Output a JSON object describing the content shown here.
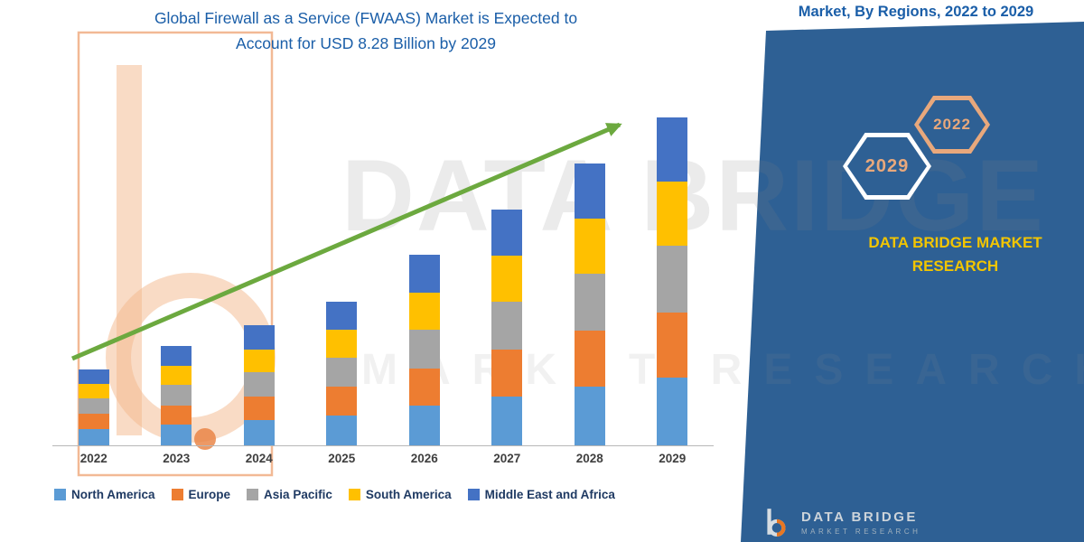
{
  "page": {
    "title_line1": "Global Firewall as a Service (FWAAS) Market is Expected to",
    "title_line2": "Account for USD 8.28 Billion by 2029"
  },
  "side_panel": {
    "heading": "Market, By Regions, 2022 to 2029",
    "hex_2022": "2022",
    "hex_2029": "2029",
    "brand_text": "DATA BRIDGE MARKET RESEARCH",
    "panel_color": "#2e6094",
    "accent_peach": "#e8a87c",
    "brand_yellow": "#f2c500",
    "arrow_green": "#6ca93f"
  },
  "watermarks": {
    "big_text": "DATA BRIDGE",
    "sub_text": "MARKET RESEARCH"
  },
  "footer_logo": {
    "name": "DATA BRIDGE",
    "tagline": "MARKET RESEARCH"
  },
  "chart_data": {
    "type": "bar",
    "stacked": true,
    "title": "Global Firewall as a Service (FWAAS) Market is Expected to Account for USD 8.28 Billion by 2029",
    "subtitle": "Market, By Regions, 2022 to 2029",
    "unit": "USD Billion",
    "categories": [
      "2022",
      "2023",
      "2024",
      "2025",
      "2026",
      "2027",
      "2028",
      "2029"
    ],
    "series": [
      {
        "name": "North America",
        "color": "#5b9bd5",
        "values": [
          0.42,
          0.52,
          0.63,
          0.76,
          1.0,
          1.24,
          1.48,
          1.72
        ]
      },
      {
        "name": "Europe",
        "color": "#ed7d31",
        "values": [
          0.38,
          0.49,
          0.6,
          0.72,
          0.95,
          1.18,
          1.41,
          1.64
        ]
      },
      {
        "name": "Asia Pacific",
        "color": "#a5a5a5",
        "values": [
          0.39,
          0.51,
          0.62,
          0.74,
          0.98,
          1.21,
          1.45,
          1.69
        ]
      },
      {
        "name": "South America",
        "color": "#ffc000",
        "values": [
          0.37,
          0.48,
          0.58,
          0.7,
          0.93,
          1.15,
          1.38,
          1.61
        ]
      },
      {
        "name": "Middle East and Africa",
        "color": "#4472c4",
        "values": [
          0.36,
          0.5,
          0.6,
          0.71,
          0.95,
          1.18,
          1.4,
          1.62
        ]
      }
    ],
    "totals": [
      1.92,
      2.5,
      3.03,
      3.63,
      4.81,
      5.96,
      7.12,
      8.28
    ],
    "ylim": [
      0,
      8.5
    ],
    "grid": false,
    "legend_position": "bottom",
    "annotations": [
      "upward green trend arrow from 2022 to 2029"
    ]
  }
}
